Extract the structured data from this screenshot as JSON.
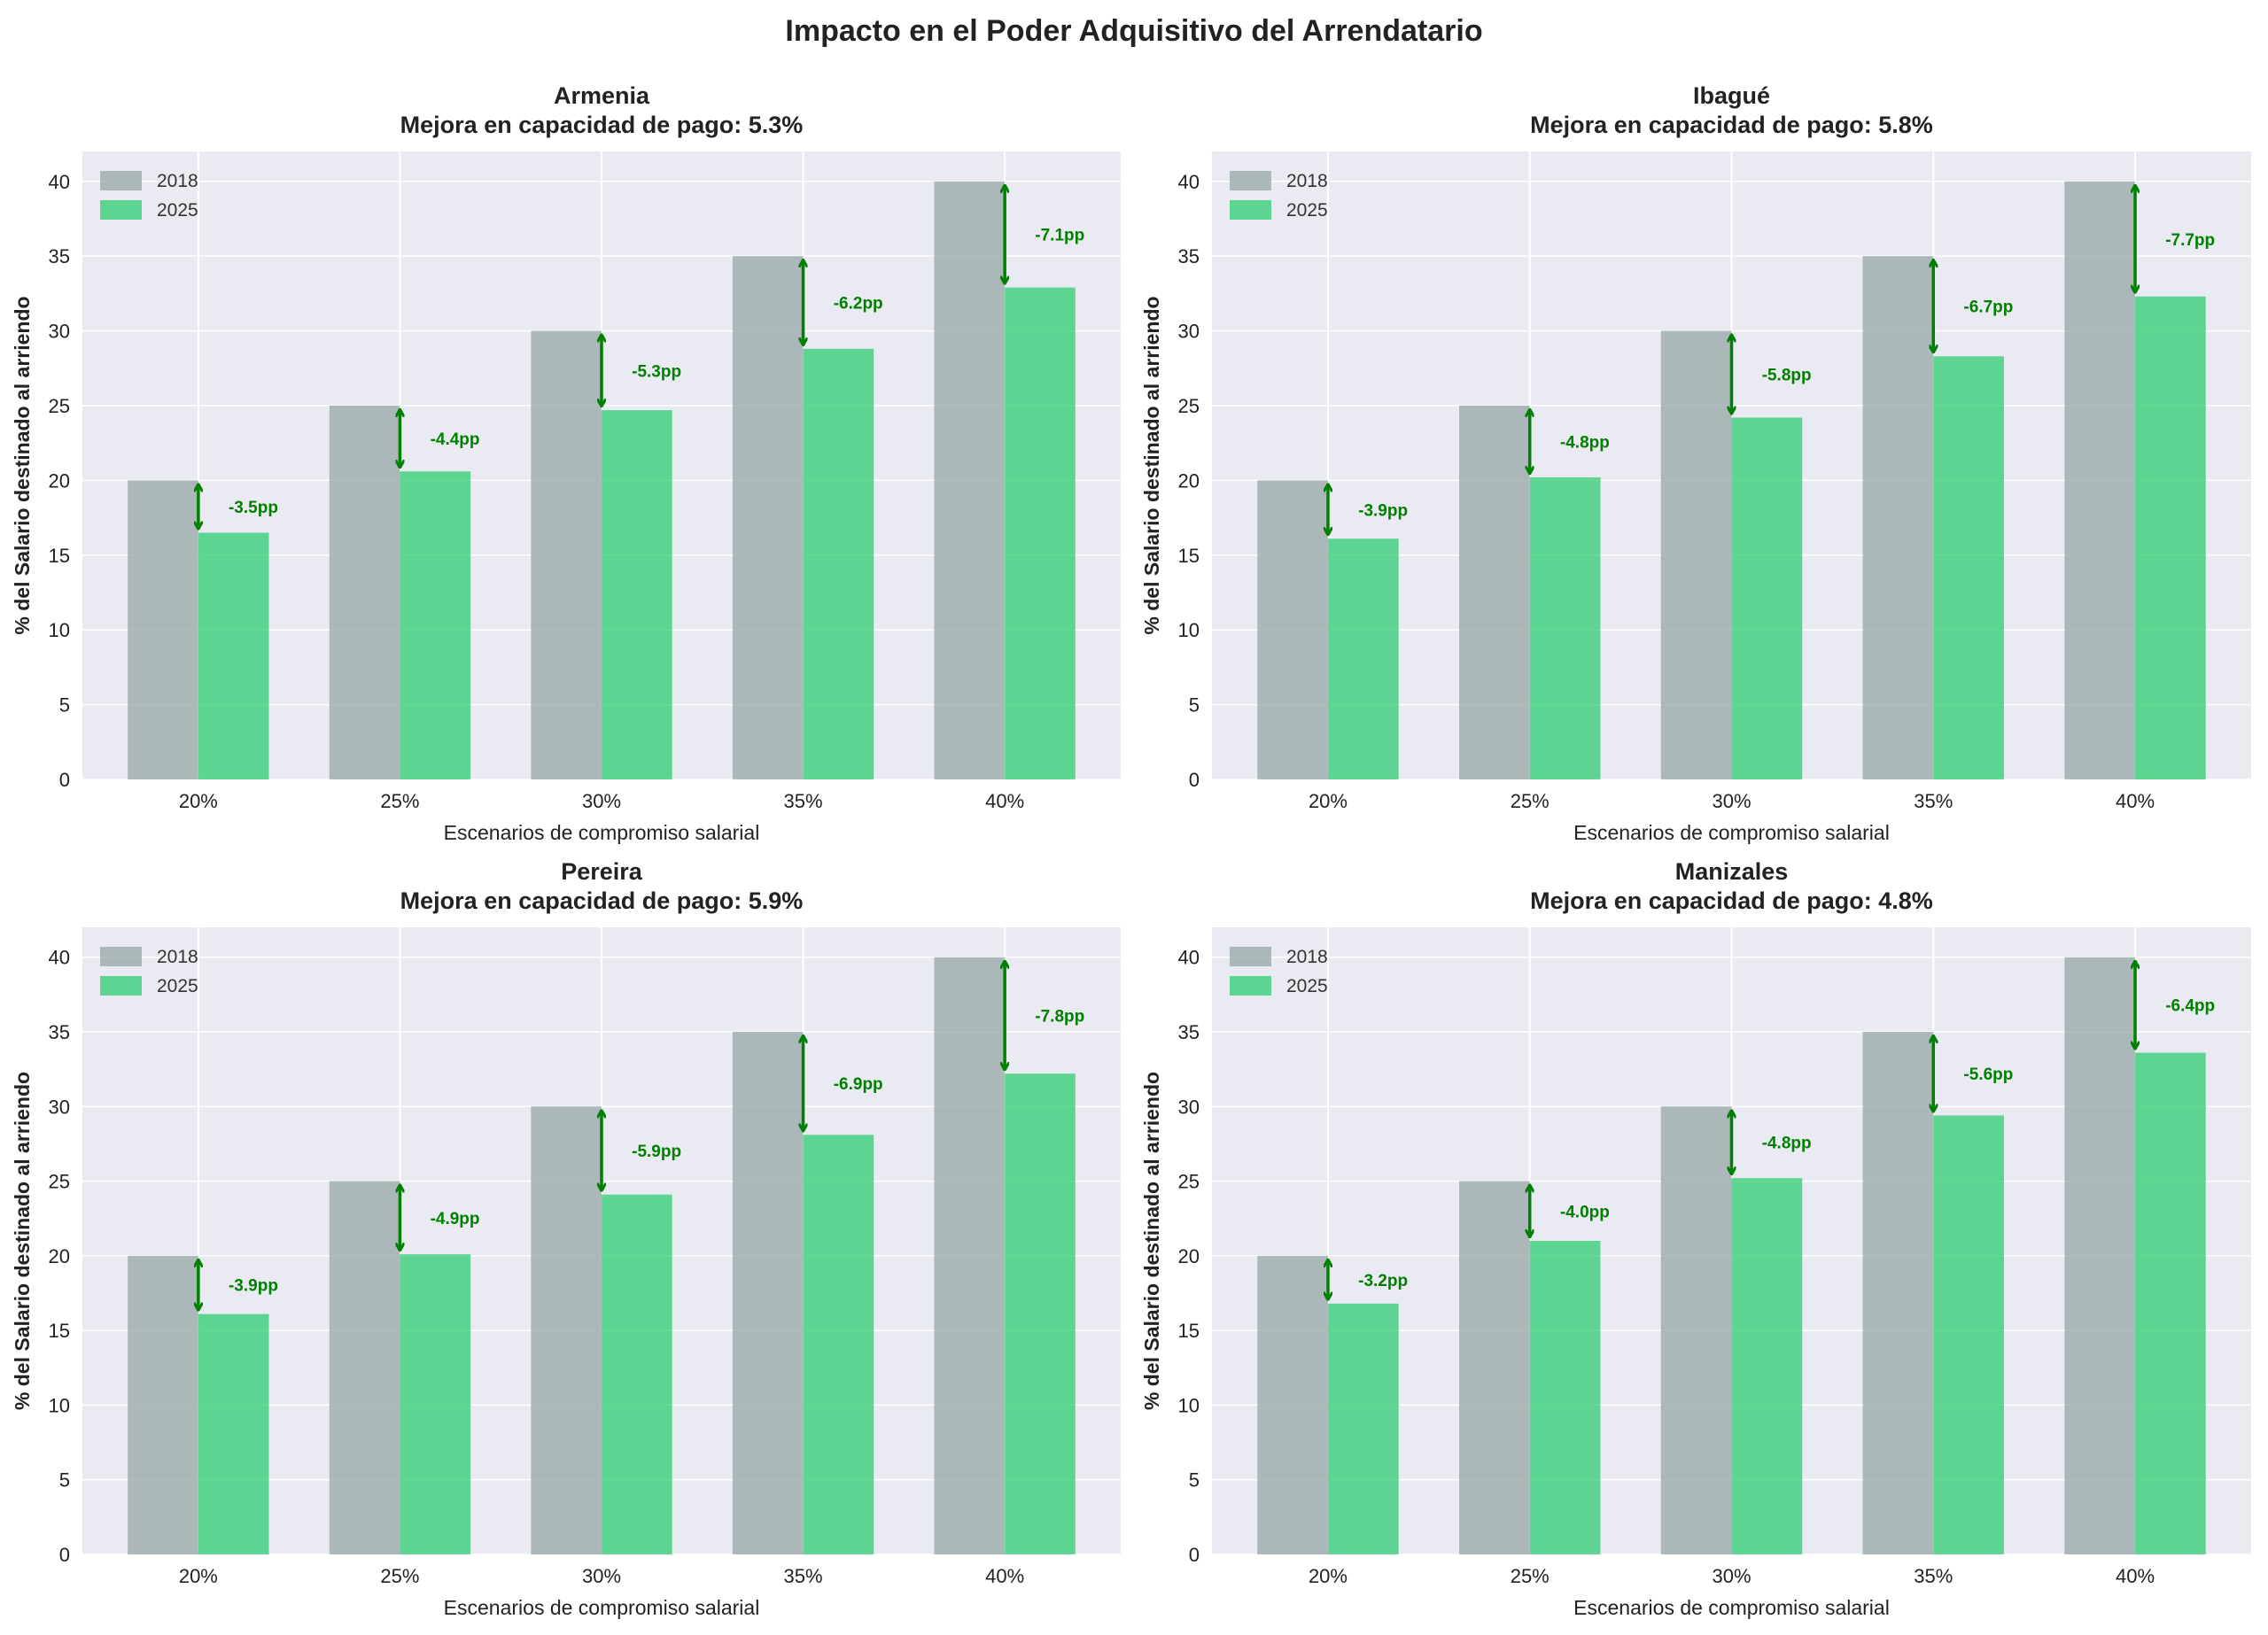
{
  "title": "Impacto en el Poder Adquisitivo del Arrendatario",
  "colors": {
    "s2018": "#95a5a6",
    "s2025": "#2ecc71",
    "arrow": "#008000",
    "bg": "#eaeaf2"
  },
  "chart_data": [
    {
      "type": "bar",
      "city": "Armenia",
      "subtitle": "Mejora en capacidad de pago: 5.3%",
      "categories": [
        "20%",
        "25%",
        "30%",
        "35%",
        "40%"
      ],
      "series": [
        {
          "name": "2018",
          "values": [
            20,
            25,
            30,
            35,
            40
          ]
        },
        {
          "name": "2025",
          "values": [
            16.5,
            20.6,
            24.7,
            28.8,
            32.9
          ]
        }
      ],
      "annotations": [
        "-3.5pp",
        "-4.4pp",
        "-5.3pp",
        "-6.2pp",
        "-7.1pp"
      ],
      "xlabel": "Escenarios de compromiso salarial",
      "ylabel": "% del Salario destinado al arriendo",
      "yticks": [
        "0",
        "5",
        "10",
        "15",
        "20",
        "25",
        "30",
        "35",
        "40"
      ],
      "ylim": [
        0,
        42
      ],
      "legend": "top-left",
      "grid": true
    },
    {
      "type": "bar",
      "city": "Ibagué",
      "subtitle": "Mejora en capacidad de pago: 5.8%",
      "categories": [
        "20%",
        "25%",
        "30%",
        "35%",
        "40%"
      ],
      "series": [
        {
          "name": "2018",
          "values": [
            20,
            25,
            30,
            35,
            40
          ]
        },
        {
          "name": "2025",
          "values": [
            16.1,
            20.2,
            24.2,
            28.3,
            32.3
          ]
        }
      ],
      "annotations": [
        "-3.9pp",
        "-4.8pp",
        "-5.8pp",
        "-6.7pp",
        "-7.7pp"
      ],
      "xlabel": "Escenarios de compromiso salarial",
      "ylabel": "% del Salario destinado al arriendo",
      "yticks": [
        "0",
        "5",
        "10",
        "15",
        "20",
        "25",
        "30",
        "35",
        "40"
      ],
      "ylim": [
        0,
        42
      ],
      "legend": "top-left",
      "grid": true
    },
    {
      "type": "bar",
      "city": "Pereira",
      "subtitle": "Mejora en capacidad de pago: 5.9%",
      "categories": [
        "20%",
        "25%",
        "30%",
        "35%",
        "40%"
      ],
      "series": [
        {
          "name": "2018",
          "values": [
            20,
            25,
            30,
            35,
            40
          ]
        },
        {
          "name": "2025",
          "values": [
            16.1,
            20.1,
            24.1,
            28.1,
            32.2
          ]
        }
      ],
      "annotations": [
        "-3.9pp",
        "-4.9pp",
        "-5.9pp",
        "-6.9pp",
        "-7.8pp"
      ],
      "xlabel": "Escenarios de compromiso salarial",
      "ylabel": "% del Salario destinado al arriendo",
      "yticks": [
        "0",
        "5",
        "10",
        "15",
        "20",
        "25",
        "30",
        "35",
        "40"
      ],
      "ylim": [
        0,
        42
      ],
      "legend": "top-left",
      "grid": true
    },
    {
      "type": "bar",
      "city": "Manizales",
      "subtitle": "Mejora en capacidad de pago: 4.8%",
      "categories": [
        "20%",
        "25%",
        "30%",
        "35%",
        "40%"
      ],
      "series": [
        {
          "name": "2018",
          "values": [
            20,
            25,
            30,
            35,
            40
          ]
        },
        {
          "name": "2025",
          "values": [
            16.8,
            21.0,
            25.2,
            29.4,
            33.6
          ]
        }
      ],
      "annotations": [
        "-3.2pp",
        "-4.0pp",
        "-4.8pp",
        "-5.6pp",
        "-6.4pp"
      ],
      "xlabel": "Escenarios de compromiso salarial",
      "ylabel": "% del Salario destinado al arriendo",
      "yticks": [
        "0",
        "5",
        "10",
        "15",
        "20",
        "25",
        "30",
        "35",
        "40"
      ],
      "ylim": [
        0,
        42
      ],
      "legend": "top-left",
      "grid": true
    }
  ]
}
